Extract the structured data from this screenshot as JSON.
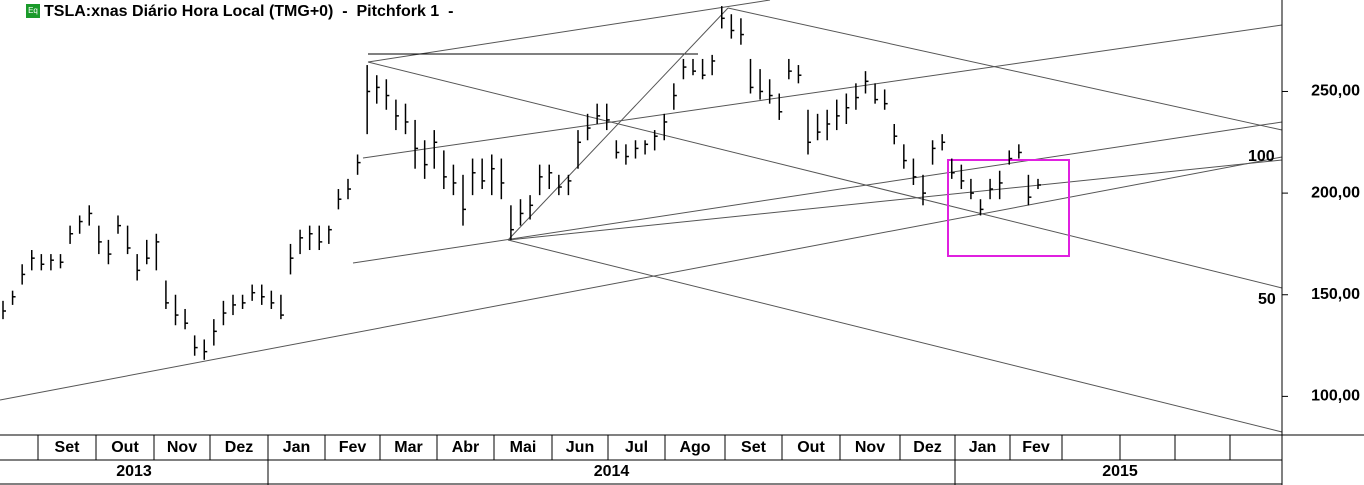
{
  "chart_data": {
    "type": "ohlc",
    "title": "TSLA:xnas Diário Hora Local (TMG+0)  -  Pitchfork 1  -",
    "icon_text": "Eq",
    "color": "#000000",
    "high": [
      147,
      152,
      165,
      172,
      170,
      170,
      170,
      184,
      189,
      194,
      184,
      177,
      189,
      184,
      170,
      177,
      180,
      157,
      150,
      143,
      130,
      128,
      138,
      147,
      150,
      150,
      155,
      155,
      152,
      150,
      175,
      182,
      184,
      184,
      184,
      202,
      207,
      219,
      263,
      258,
      256,
      246,
      244,
      236,
      226,
      231,
      221,
      214,
      209,
      217,
      217,
      219,
      217,
      194,
      197,
      199,
      214,
      214,
      209,
      209,
      231,
      239,
      244,
      244,
      226,
      224,
      226,
      226,
      231,
      239,
      254,
      266,
      266,
      266,
      268,
      292,
      288,
      286,
      266,
      261,
      256,
      249,
      266,
      263,
      241,
      239,
      241,
      246,
      249,
      254,
      260,
      254,
      251,
      234,
      224,
      217,
      209,
      226,
      229,
      217,
      214,
      207,
      197,
      207,
      211,
      221,
      224,
      209,
      207
    ],
    "low": [
      138,
      145,
      155,
      162,
      162,
      162,
      163,
      175,
      180,
      184,
      170,
      165,
      180,
      170,
      157,
      165,
      162,
      143,
      135,
      133,
      120,
      118,
      125,
      135,
      140,
      143,
      147,
      145,
      143,
      138,
      160,
      170,
      172,
      172,
      175,
      192,
      197,
      209,
      229,
      244,
      241,
      231,
      229,
      212,
      207,
      212,
      202,
      199,
      184,
      199,
      202,
      199,
      197,
      177,
      184,
      187,
      199,
      202,
      199,
      199,
      212,
      226,
      234,
      231,
      217,
      214,
      217,
      219,
      221,
      226,
      241,
      256,
      258,
      256,
      258,
      281,
      276,
      273,
      249,
      246,
      244,
      236,
      256,
      254,
      219,
      226,
      226,
      231,
      234,
      241,
      249,
      244,
      241,
      224,
      212,
      204,
      194,
      214,
      221,
      207,
      202,
      197,
      189,
      197,
      197,
      214,
      217,
      194,
      202
    ],
    "close": [
      142,
      149,
      160,
      168,
      165,
      167,
      166,
      180,
      186,
      190,
      176,
      170,
      184,
      173,
      162,
      168,
      176,
      146,
      140,
      136,
      124,
      122,
      132,
      141,
      145,
      146,
      151,
      149,
      146,
      140,
      168,
      178,
      180,
      176,
      182,
      197,
      202,
      215,
      250,
      252,
      248,
      238,
      235,
      222,
      214,
      225,
      208,
      205,
      192,
      210,
      206,
      212,
      205,
      182,
      190,
      194,
      208,
      210,
      203,
      206,
      225,
      232,
      238,
      236,
      220,
      218,
      222,
      224,
      228,
      235,
      248,
      262,
      260,
      258,
      265,
      286,
      280,
      278,
      252,
      250,
      248,
      240,
      260,
      258,
      225,
      230,
      234,
      238,
      242,
      247,
      255,
      246,
      244,
      228,
      216,
      208,
      200,
      222,
      225,
      210,
      206,
      200,
      192,
      202,
      205,
      217,
      220,
      198,
      204
    ],
    "ylim": [
      81,
      295
    ],
    "yticks": [
      {
        "value": 100,
        "label": "100,00"
      },
      {
        "value": 150,
        "label": "150,00"
      },
      {
        "value": 200,
        "label": "200,00"
      },
      {
        "value": 250,
        "label": "250,00"
      }
    ],
    "categories": [
      null,
      "Set",
      "Out",
      "Nov",
      "Dez",
      "Jan",
      "Fev",
      "Mar",
      "Abr",
      "Mai",
      "Jun",
      "Jul",
      "Ago",
      "Set",
      "Out",
      "Nov",
      "Dez",
      "Jan",
      "Fev",
      null,
      null,
      null,
      null
    ],
    "years": [
      "2013",
      "2014",
      "2015"
    ],
    "annotations": [
      "100",
      "50"
    ]
  }
}
